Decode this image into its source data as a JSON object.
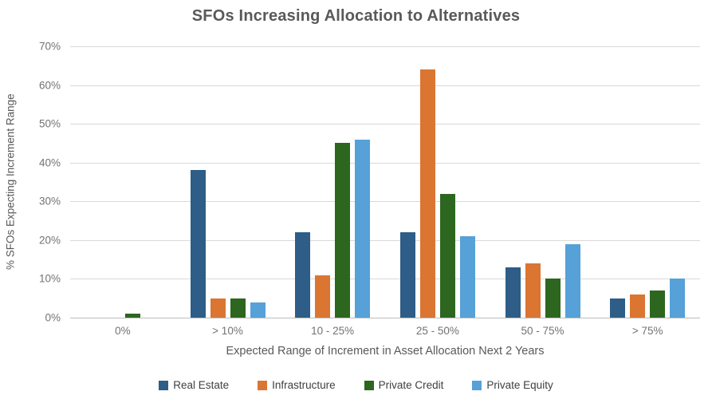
{
  "chart_data": {
    "type": "bar",
    "title": "SFOs Increasing Allocation to Alternatives",
    "xlabel": "Expected Range of Increment in Asset Allocation Next 2 Years",
    "ylabel": "% SFOs Expecting Increment Range",
    "categories": [
      "0%",
      "> 10%",
      "10 - 25%",
      "25 - 50%",
      "50 - 75%",
      "> 75%"
    ],
    "series": [
      {
        "name": "Real Estate",
        "color": "#2E5D87",
        "values": [
          0,
          38,
          22,
          22,
          13,
          5
        ]
      },
      {
        "name": "Infrastructure",
        "color": "#DB7532",
        "values": [
          0,
          5,
          11,
          64,
          14,
          6
        ]
      },
      {
        "name": "Private Credit",
        "color": "#2D661E",
        "values": [
          1,
          5,
          45,
          32,
          10,
          7
        ]
      },
      {
        "name": "Private Equity",
        "color": "#55A1D8",
        "values": [
          0,
          4,
          46,
          21,
          19,
          10
        ]
      }
    ],
    "ylim": [
      0,
      70
    ],
    "ytick_step": 10,
    "ytick_suffix": "%",
    "grid": true,
    "legend_position": "bottom"
  },
  "colors": {
    "title_text": "#595959",
    "axis_text": "#737373",
    "axis_title_text": "#595959",
    "legend_text": "#404040",
    "gridline": "#D9D9D9",
    "axis_line": "#BDBDBD",
    "background": "#FFFFFF"
  }
}
